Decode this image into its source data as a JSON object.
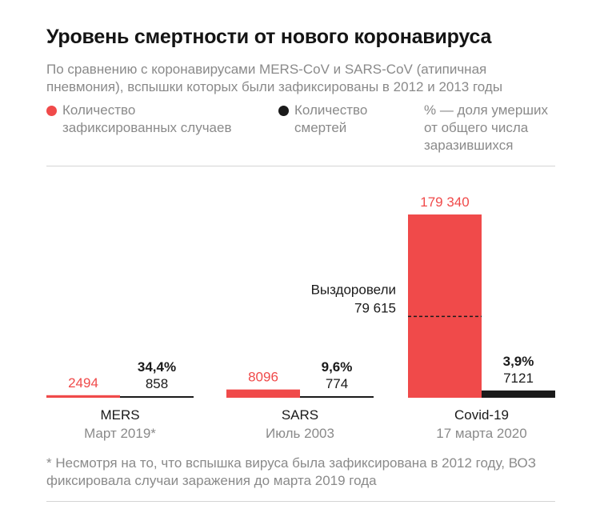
{
  "chart_data": {
    "type": "bar",
    "title": "Уровень смертности от нового коронавируса",
    "subtitle": "По сравнению с коронавирусами MERS-CoV и SARS-CoV (атипичная пневмония), вспышки которых были зафиксированы в 2012 и 2013 годы",
    "legend": {
      "cases": "Количество зафиксированных случаев",
      "deaths": "Количество смертей",
      "percent": "% — доля умерших от общего числа заразившихся"
    },
    "colors": {
      "cases": "#f04a4a",
      "deaths": "#1a1a1a"
    },
    "groups": [
      {
        "name": "MERS",
        "date": "Март 2019*",
        "cases": 2494,
        "cases_label": "2494",
        "deaths": 858,
        "deaths_label": "858",
        "percent": "34,4%"
      },
      {
        "name": "SARS",
        "date": "Июль 2003",
        "cases": 8096,
        "cases_label": "8096",
        "deaths": 774,
        "deaths_label": "774",
        "percent": "9,6%"
      },
      {
        "name": "Covid-19",
        "date": "17 марта 2020",
        "cases": 179340,
        "cases_label": "179 340",
        "deaths": 7121,
        "deaths_label": "7121",
        "percent": "3,9%"
      }
    ],
    "annotation": {
      "label": "Выздоровели",
      "value": 79615,
      "value_label": "79 615"
    },
    "footnote": "* Несмотря на то, что вспышка вируса была зафиксирована в 2012 году, ВОЗ фиксировала случаи заражения до марта 2019 года"
  }
}
